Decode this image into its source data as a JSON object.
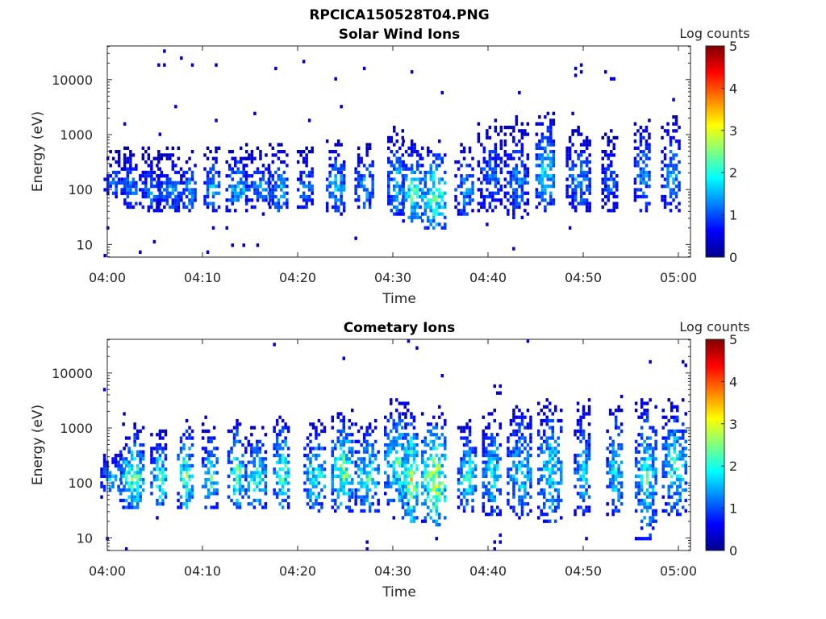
{
  "figure_title": "RPCICA150528T04.PNG",
  "chart_data": [
    {
      "type": "heatmap",
      "title": "Solar Wind Ions",
      "xlabel": "Time",
      "ylabel": "Energy (eV)",
      "x_ticks": [
        "04:00",
        "04:10",
        "04:20",
        "04:30",
        "04:40",
        "04:50",
        "05:00"
      ],
      "x_tick_minutes": [
        0,
        10,
        20,
        30,
        40,
        50,
        60
      ],
      "xlim_minutes": [
        0,
        61.3
      ],
      "y_scale": "log",
      "y_ticks": [
        "10",
        "100",
        "1000",
        "10000"
      ],
      "y_tick_values": [
        10,
        100,
        1000,
        10000
      ],
      "ylim": [
        5.9,
        41000
      ],
      "colorbar": {
        "label": "Log counts",
        "ticks": [
          "0",
          "1",
          "2",
          "3",
          "4",
          "5"
        ],
        "range": [
          0,
          5
        ],
        "colormap": "jet"
      },
      "bursts": [
        {
          "t": 0.8,
          "emin": 80,
          "emax": 600,
          "peak": 1.5
        },
        {
          "t": 2.3,
          "emin": 45,
          "emax": 700,
          "peak": 1.8
        },
        {
          "t": 4.5,
          "emin": 40,
          "emax": 600,
          "peak": 1.6
        },
        {
          "t": 6.6,
          "emin": 40,
          "emax": 650,
          "peak": 1.7
        },
        {
          "t": 8.5,
          "emin": 40,
          "emax": 600,
          "peak": 1.8
        },
        {
          "t": 11.0,
          "emin": 40,
          "emax": 700,
          "peak": 2.0
        },
        {
          "t": 13.6,
          "emin": 40,
          "emax": 800,
          "peak": 2.1
        },
        {
          "t": 15.8,
          "emin": 45,
          "emax": 700,
          "peak": 1.7
        },
        {
          "t": 18.0,
          "emin": 40,
          "emax": 800,
          "peak": 2.0
        },
        {
          "t": 20.8,
          "emin": 45,
          "emax": 700,
          "peak": 1.7
        },
        {
          "t": 24.0,
          "emin": 40,
          "emax": 900,
          "peak": 2.1
        },
        {
          "t": 27.0,
          "emin": 45,
          "emax": 800,
          "peak": 2.0
        },
        {
          "t": 30.3,
          "emin": 35,
          "emax": 1500,
          "peak": 2.2
        },
        {
          "t": 32.0,
          "emin": 25,
          "emax": 900,
          "peak": 2.9
        },
        {
          "t": 34.3,
          "emin": 20,
          "emax": 900,
          "peak": 3.0
        },
        {
          "t": 37.5,
          "emin": 35,
          "emax": 800,
          "peak": 1.9
        },
        {
          "t": 40.2,
          "emin": 40,
          "emax": 2000,
          "peak": 1.6
        },
        {
          "t": 43.0,
          "emin": 30,
          "emax": 2000,
          "peak": 1.7
        },
        {
          "t": 46.0,
          "emin": 40,
          "emax": 3000,
          "peak": 2.4
        },
        {
          "t": 49.5,
          "emin": 40,
          "emax": 1600,
          "peak": 1.8
        },
        {
          "t": 52.8,
          "emin": 40,
          "emax": 1200,
          "peak": 1.5
        },
        {
          "t": 56.2,
          "emin": 40,
          "emax": 2500,
          "peak": 1.8
        },
        {
          "t": 59.2,
          "emin": 40,
          "emax": 2500,
          "peak": 1.9
        }
      ]
    },
    {
      "type": "heatmap",
      "title": "Cometary Ions",
      "xlabel": "Time",
      "ylabel": "Energy (eV)",
      "x_ticks": [
        "04:00",
        "04:10",
        "04:20",
        "04:30",
        "04:40",
        "04:50",
        "05:00"
      ],
      "x_tick_minutes": [
        0,
        10,
        20,
        30,
        40,
        50,
        60
      ],
      "xlim_minutes": [
        0,
        61.3
      ],
      "y_scale": "log",
      "y_ticks": [
        "10",
        "100",
        "1000",
        "10000"
      ],
      "y_tick_values": [
        10,
        100,
        1000,
        10000
      ],
      "ylim": [
        5.9,
        41000
      ],
      "colorbar": {
        "label": "Log counts",
        "ticks": [
          "0",
          "1",
          "2",
          "3",
          "4",
          "5"
        ],
        "range": [
          0,
          5
        ],
        "colormap": "jet"
      },
      "bursts": [
        {
          "t": 0.6,
          "emin": 70,
          "emax": 500,
          "peak": 2.2
        },
        {
          "t": 2.6,
          "emin": 35,
          "emax": 1300,
          "peak": 3.0
        },
        {
          "t": 5.4,
          "emin": 40,
          "emax": 1000,
          "peak": 2.7
        },
        {
          "t": 8.2,
          "emin": 35,
          "emax": 1500,
          "peak": 3.0
        },
        {
          "t": 10.8,
          "emin": 35,
          "emax": 1300,
          "peak": 2.6
        },
        {
          "t": 13.5,
          "emin": 35,
          "emax": 1600,
          "peak": 3.0
        },
        {
          "t": 15.6,
          "emin": 35,
          "emax": 1200,
          "peak": 2.6
        },
        {
          "t": 18.3,
          "emin": 35,
          "emax": 2000,
          "peak": 2.9
        },
        {
          "t": 21.8,
          "emin": 30,
          "emax": 1600,
          "peak": 2.6
        },
        {
          "t": 24.7,
          "emin": 30,
          "emax": 2500,
          "peak": 3.1
        },
        {
          "t": 27.3,
          "emin": 30,
          "emax": 1500,
          "peak": 2.7
        },
        {
          "t": 30.4,
          "emin": 35,
          "emax": 4000,
          "peak": 2.8
        },
        {
          "t": 31.8,
          "emin": 20,
          "emax": 2000,
          "peak": 3.7
        },
        {
          "t": 34.3,
          "emin": 18,
          "emax": 2000,
          "peak": 3.8
        },
        {
          "t": 37.8,
          "emin": 30,
          "emax": 1500,
          "peak": 2.6
        },
        {
          "t": 40.4,
          "emin": 25,
          "emax": 2500,
          "peak": 2.4
        },
        {
          "t": 43.3,
          "emin": 25,
          "emax": 3000,
          "peak": 2.3
        },
        {
          "t": 46.5,
          "emin": 20,
          "emax": 4000,
          "peak": 2.6
        },
        {
          "t": 49.9,
          "emin": 25,
          "emax": 3000,
          "peak": 2.2
        },
        {
          "t": 53.3,
          "emin": 25,
          "emax": 3000,
          "peak": 2.4
        },
        {
          "t": 56.6,
          "emin": 10,
          "emax": 4000,
          "peak": 2.5
        },
        {
          "t": 59.6,
          "emin": 25,
          "emax": 4000,
          "peak": 2.6
        }
      ]
    }
  ]
}
